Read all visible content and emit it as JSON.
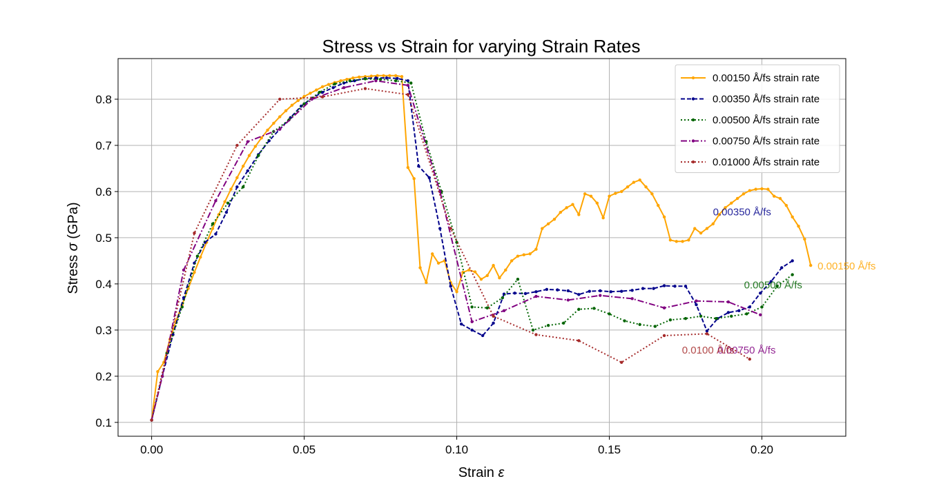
{
  "chart_data": {
    "type": "line",
    "title": "Stress vs Strain for varying Strain Rates",
    "xlabel": "Strain ε",
    "ylabel": "Stress σ (GPa)",
    "xlim": [
      -0.011,
      0.2275
    ],
    "ylim": [
      0.07,
      0.888
    ],
    "xticks": [
      0.0,
      0.05,
      0.1,
      0.15,
      0.2
    ],
    "xtick_labels": [
      "0.00",
      "0.05",
      "0.10",
      "0.15",
      "0.20"
    ],
    "yticks": [
      0.1,
      0.2,
      0.3,
      0.4,
      0.5,
      0.6,
      0.7,
      0.8
    ],
    "ytick_labels": [
      "0.1",
      "0.2",
      "0.3",
      "0.4",
      "0.5",
      "0.6",
      "0.7",
      "0.8"
    ],
    "grid": true,
    "legend_position": "top-right",
    "series": [
      {
        "name": "0.00150 Å/fs  strain rate",
        "color": "#FFA500",
        "dash": "solid",
        "annotation": "0.00150 Å/fs",
        "x": [
          0.0,
          0.002,
          0.004,
          0.006,
          0.008,
          0.01,
          0.012,
          0.014,
          0.016,
          0.018,
          0.02,
          0.022,
          0.024,
          0.026,
          0.028,
          0.03,
          0.032,
          0.034,
          0.036,
          0.038,
          0.04,
          0.042,
          0.044,
          0.046,
          0.048,
          0.05,
          0.052,
          0.054,
          0.056,
          0.058,
          0.06,
          0.062,
          0.064,
          0.066,
          0.068,
          0.07,
          0.072,
          0.074,
          0.076,
          0.078,
          0.08,
          0.082,
          0.084,
          0.086,
          0.088,
          0.09,
          0.092,
          0.094,
          0.096,
          0.098,
          0.1,
          0.102,
          0.104,
          0.106,
          0.108,
          0.11,
          0.112,
          0.114,
          0.116,
          0.118,
          0.12,
          0.122,
          0.124,
          0.126,
          0.128,
          0.13,
          0.132,
          0.134,
          0.136,
          0.138,
          0.14,
          0.142,
          0.144,
          0.146,
          0.148,
          0.15,
          0.152,
          0.154,
          0.156,
          0.158,
          0.16,
          0.162,
          0.164,
          0.166,
          0.168,
          0.17,
          0.172,
          0.174,
          0.176,
          0.178,
          0.18,
          0.182,
          0.184,
          0.186,
          0.188,
          0.19,
          0.192,
          0.194,
          0.196,
          0.198,
          0.2,
          0.202,
          0.204,
          0.206,
          0.208,
          0.21,
          0.212,
          0.214,
          0.216
        ],
        "y": [
          0.105,
          0.21,
          0.23,
          0.28,
          0.32,
          0.355,
          0.39,
          0.425,
          0.458,
          0.49,
          0.52,
          0.55,
          0.578,
          0.605,
          0.63,
          0.655,
          0.678,
          0.698,
          0.716,
          0.733,
          0.748,
          0.762,
          0.775,
          0.787,
          0.797,
          0.806,
          0.813,
          0.82,
          0.827,
          0.832,
          0.836,
          0.84,
          0.843,
          0.846,
          0.848,
          0.849,
          0.85,
          0.851,
          0.851,
          0.851,
          0.851,
          0.849,
          0.652,
          0.628,
          0.435,
          0.403,
          0.465,
          0.445,
          0.45,
          0.403,
          0.383,
          0.425,
          0.43,
          0.426,
          0.41,
          0.418,
          0.44,
          0.413,
          0.43,
          0.45,
          0.46,
          0.463,
          0.465,
          0.475,
          0.52,
          0.53,
          0.54,
          0.555,
          0.565,
          0.572,
          0.55,
          0.595,
          0.59,
          0.575,
          0.543,
          0.59,
          0.596,
          0.6,
          0.61,
          0.62,
          0.625,
          0.61,
          0.595,
          0.57,
          0.545,
          0.495,
          0.492,
          0.492,
          0.495,
          0.52,
          0.51,
          0.52,
          0.53,
          0.55,
          0.565,
          0.575,
          0.585,
          0.595,
          0.602,
          0.605,
          0.606,
          0.605,
          0.59,
          0.585,
          0.57,
          0.545,
          0.525,
          0.497,
          0.44
        ]
      },
      {
        "name": "0.00350 Å/fs  strain rate",
        "color": "#00008B",
        "dash": "dashed",
        "annotation": "0.00350 Å/fs",
        "x": [
          0.0,
          0.0035,
          0.007,
          0.0105,
          0.014,
          0.0175,
          0.021,
          0.0245,
          0.028,
          0.0315,
          0.035,
          0.0385,
          0.042,
          0.0455,
          0.049,
          0.0525,
          0.056,
          0.0595,
          0.063,
          0.0665,
          0.07,
          0.0735,
          0.077,
          0.0805,
          0.084,
          0.0875,
          0.091,
          0.0945,
          0.098,
          0.1015,
          0.105,
          0.1085,
          0.112,
          0.1155,
          0.119,
          0.1225,
          0.126,
          0.1295,
          0.133,
          0.1365,
          0.14,
          0.1435,
          0.147,
          0.1505,
          0.154,
          0.1575,
          0.161,
          0.1645,
          0.168,
          0.1715,
          0.175,
          0.1785,
          0.182,
          0.1855,
          0.189,
          0.1925,
          0.196,
          0.1995,
          0.203,
          0.2065,
          0.21
        ],
        "y": [
          0.105,
          0.2,
          0.29,
          0.37,
          0.445,
          0.49,
          0.508,
          0.555,
          0.61,
          0.645,
          0.68,
          0.71,
          0.735,
          0.76,
          0.785,
          0.802,
          0.815,
          0.825,
          0.835,
          0.84,
          0.845,
          0.846,
          0.846,
          0.845,
          0.84,
          0.655,
          0.63,
          0.52,
          0.395,
          0.313,
          0.3,
          0.288,
          0.315,
          0.378,
          0.38,
          0.379,
          0.383,
          0.388,
          0.387,
          0.385,
          0.377,
          0.384,
          0.385,
          0.383,
          0.384,
          0.386,
          0.39,
          0.39,
          0.396,
          0.395,
          0.395,
          0.355,
          0.298,
          0.325,
          0.338,
          0.342,
          0.35,
          0.38,
          0.405,
          0.435,
          0.45
        ]
      },
      {
        "name": "0.00500 Å/fs  strain rate",
        "color": "#006400",
        "dash": "dotted",
        "annotation": "0.00500 Å/fs",
        "x": [
          0.0,
          0.005,
          0.01,
          0.015,
          0.02,
          0.025,
          0.03,
          0.035,
          0.04,
          0.045,
          0.05,
          0.055,
          0.06,
          0.065,
          0.07,
          0.075,
          0.08,
          0.085,
          0.09,
          0.095,
          0.1,
          0.105,
          0.11,
          0.115,
          0.12,
          0.125,
          0.13,
          0.135,
          0.14,
          0.145,
          0.15,
          0.155,
          0.16,
          0.165,
          0.17,
          0.175,
          0.18,
          0.185,
          0.19,
          0.195,
          0.2,
          0.205,
          0.21
        ],
        "y": [
          0.105,
          0.25,
          0.35,
          0.46,
          0.53,
          0.575,
          0.61,
          0.678,
          0.73,
          0.755,
          0.79,
          0.815,
          0.833,
          0.84,
          0.844,
          0.843,
          0.84,
          0.835,
          0.708,
          0.6,
          0.49,
          0.35,
          0.348,
          0.37,
          0.41,
          0.3,
          0.31,
          0.315,
          0.345,
          0.347,
          0.335,
          0.32,
          0.312,
          0.308,
          0.322,
          0.325,
          0.33,
          0.325,
          0.33,
          0.335,
          0.35,
          0.395,
          0.42
        ]
      },
      {
        "name": "0.00750 Å/fs  strain rate",
        "color": "#800080",
        "dash": "dashdot",
        "annotation": "0.00750 Å/fs",
        "x": [
          0.0,
          0.0035,
          0.0105,
          0.021,
          0.0315,
          0.042,
          0.0525,
          0.063,
          0.0735,
          0.084,
          0.0945,
          0.105,
          0.1155,
          0.126,
          0.1365,
          0.147,
          0.1575,
          0.168,
          0.1785,
          0.189,
          0.1995
        ],
        "y": [
          0.105,
          0.2,
          0.43,
          0.58,
          0.708,
          0.735,
          0.8,
          0.825,
          0.84,
          0.83,
          0.6,
          0.318,
          0.342,
          0.373,
          0.365,
          0.375,
          0.368,
          0.348,
          0.363,
          0.361,
          0.333
        ]
      },
      {
        "name": "0.01000 Å/fs  strain rate",
        "color": "#A52A2A",
        "dash": "dotted",
        "annotation": "0.0100 Å/fs",
        "x": [
          0.0,
          0.014,
          0.028,
          0.042,
          0.056,
          0.07,
          0.084,
          0.098,
          0.112,
          0.126,
          0.14,
          0.154,
          0.168,
          0.182,
          0.196
        ],
        "y": [
          0.105,
          0.51,
          0.7,
          0.8,
          0.805,
          0.823,
          0.81,
          0.52,
          0.33,
          0.29,
          0.277,
          0.23,
          0.288,
          0.292,
          0.237
        ]
      }
    ]
  }
}
